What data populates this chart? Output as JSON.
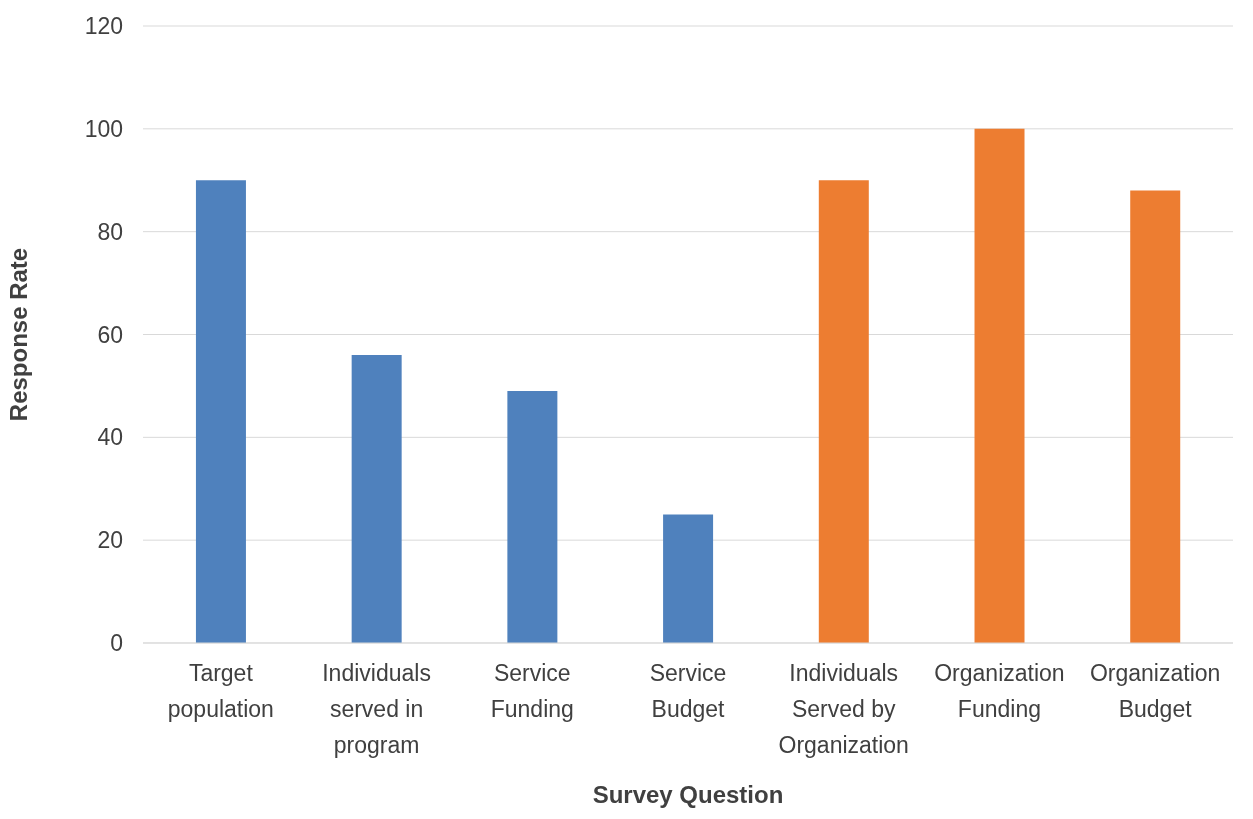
{
  "chart_data": {
    "type": "bar",
    "xlabel": "Survey Question",
    "ylabel": "Response Rate",
    "categories": [
      "Target population",
      "Individuals served in program",
      "Service Funding",
      "Service Budget",
      "Individuals Served by Organization",
      "Organization Funding",
      "Organization Budget"
    ],
    "values": [
      90,
      56,
      49,
      25,
      90,
      100,
      88
    ],
    "colors": [
      "#4f81bd",
      "#4f81bd",
      "#4f81bd",
      "#4f81bd",
      "#ed7d31",
      "#ed7d31",
      "#ed7d31"
    ],
    "ylim": [
      0,
      120
    ],
    "yticks": [
      0,
      20,
      40,
      60,
      80,
      100,
      120
    ],
    "grid": "y"
  }
}
